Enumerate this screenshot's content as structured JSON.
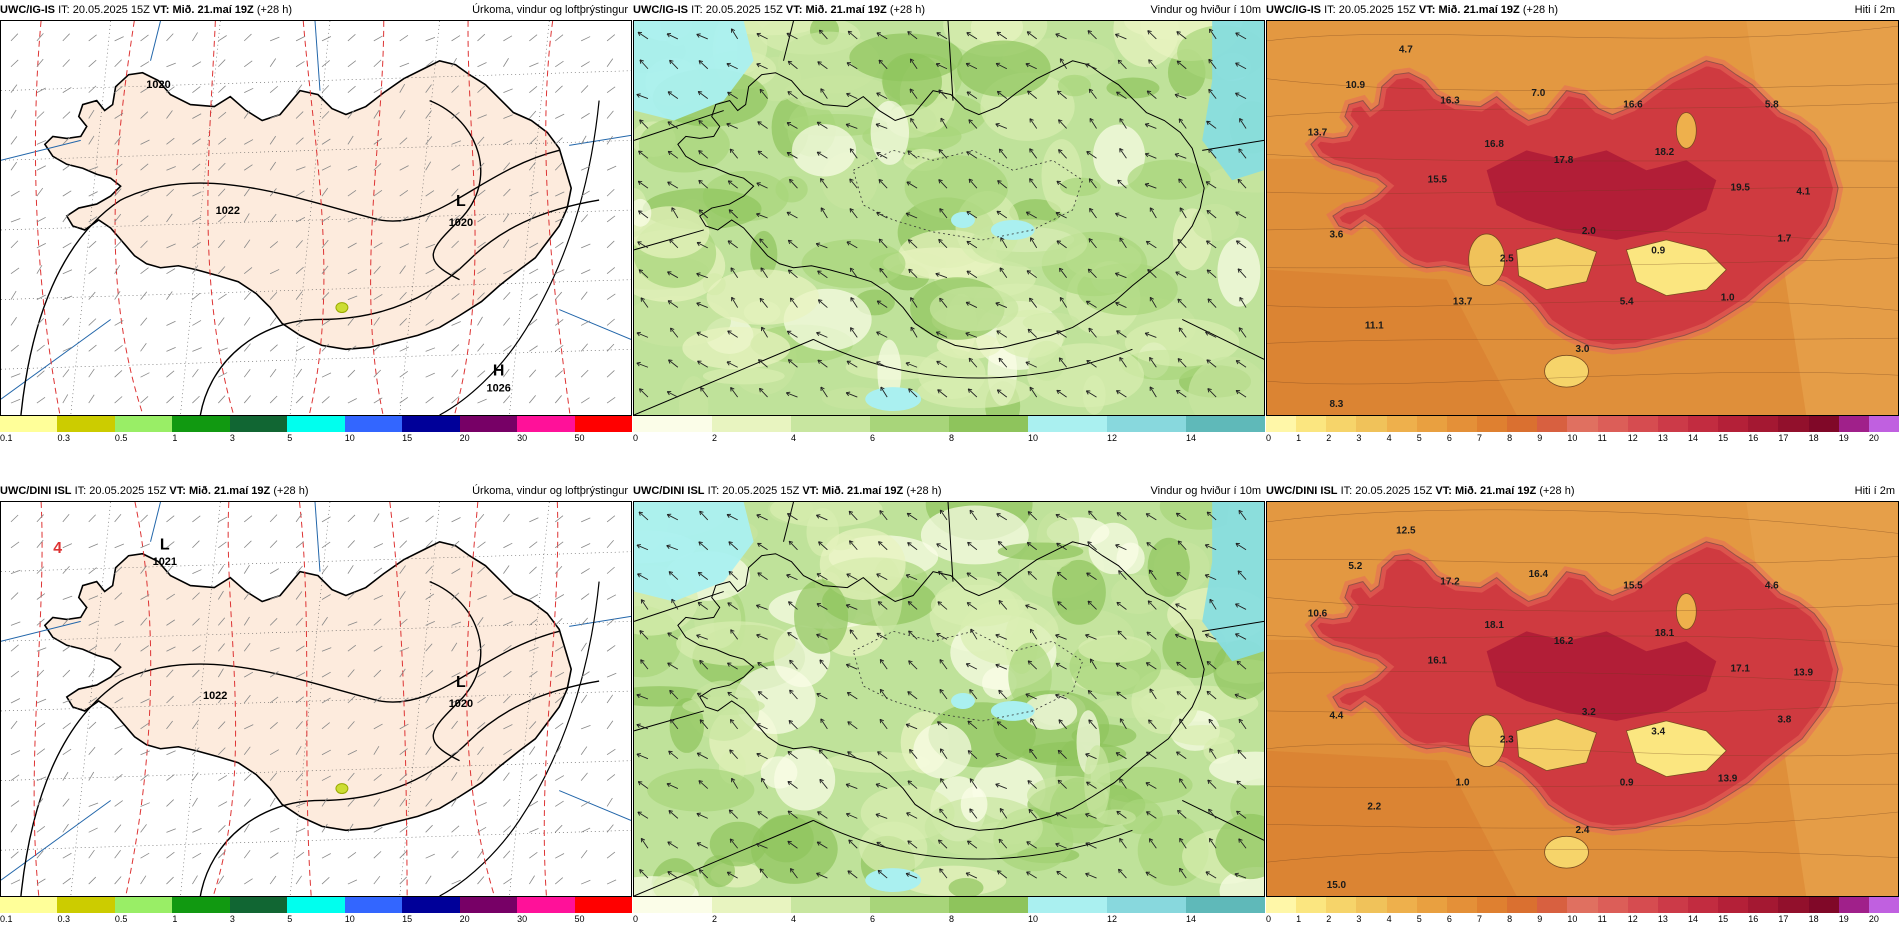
{
  "panels": [
    {
      "id": "r1c1",
      "model": "UWC/IG-IS",
      "it_label": "IT:",
      "it_value": "20.05.2025 15Z",
      "vt_label": "VT:",
      "vt_value": "Mið. 21.maí 19Z",
      "lead": "(+28 h)",
      "title": "Úrkoma, vindur og loftþrýstingur",
      "kind": "precip",
      "labels": [
        {
          "text": "1020"
        },
        {
          "text": "L"
        },
        {
          "text": "1020"
        },
        {
          "text": "H"
        },
        {
          "text": "1026"
        },
        {
          "text": "1022"
        }
      ],
      "legend_ticks": [
        "0.1",
        "0.3",
        "0.5",
        "1",
        "3",
        "5",
        "10",
        "15",
        "20",
        "30",
        "50"
      ]
    },
    {
      "id": "r1c2",
      "model": "UWC/IG-IS",
      "it_label": "IT:",
      "it_value": "20.05.2025 15Z",
      "vt_label": "VT:",
      "vt_value": "Mið. 21.maí 19Z",
      "lead": "(+28 h)",
      "title": "Vindur og hviður í 10m",
      "kind": "wind",
      "labels": [],
      "legend_ticks": [
        "0",
        "2",
        "4",
        "6",
        "8",
        "10",
        "12",
        "14"
      ]
    },
    {
      "id": "r1c3",
      "model": "UWC/IG-IS",
      "it_label": "IT:",
      "it_value": "20.05.2025 15Z",
      "vt_label": "VT:",
      "vt_value": "Mið. 21.maí 19Z",
      "lead": "(+28 h)",
      "title": "Hiti í 2m",
      "kind": "temp",
      "labels": [
        {
          "text": "4.7"
        },
        {
          "text": "10.9"
        },
        {
          "text": "16.3"
        },
        {
          "text": "7.0"
        },
        {
          "text": "16.6"
        },
        {
          "text": "5.8"
        },
        {
          "text": "13.7"
        },
        {
          "text": "16.8"
        },
        {
          "text": "17.8"
        },
        {
          "text": "18.2"
        },
        {
          "text": "15.5"
        },
        {
          "text": "19.5"
        },
        {
          "text": "4.1"
        },
        {
          "text": "3.6"
        },
        {
          "text": "2.0"
        },
        {
          "text": "0.9"
        },
        {
          "text": "1.7"
        },
        {
          "text": "2.5"
        },
        {
          "text": "13.7"
        },
        {
          "text": "5.4"
        },
        {
          "text": "1.0"
        },
        {
          "text": "11.1"
        },
        {
          "text": "3.0"
        },
        {
          "text": "8.3"
        }
      ],
      "legend_ticks": [
        "0",
        "1",
        "2",
        "3",
        "4",
        "5",
        "6",
        "7",
        "8",
        "9",
        "10",
        "11",
        "12",
        "13",
        "14",
        "15",
        "16",
        "17",
        "18",
        "19",
        "20"
      ]
    },
    {
      "id": "r2c1",
      "model": "UWC/DINI ISL",
      "it_label": "IT:",
      "it_value": "20.05.2025 15Z",
      "vt_label": "VT:",
      "vt_value": "Mið. 21.maí 19Z",
      "lead": "(+28 h)",
      "title": "Úrkoma, vindur og loftþrýstingur",
      "kind": "precip",
      "labels": [
        {
          "text": "L"
        },
        {
          "text": "1021"
        },
        {
          "text": "L"
        },
        {
          "text": "1020"
        },
        {
          "text": "1022"
        },
        {
          "text": "4"
        }
      ],
      "legend_ticks": [
        "0.1",
        "0.3",
        "0.5",
        "1",
        "3",
        "5",
        "10",
        "15",
        "20",
        "30",
        "50"
      ]
    },
    {
      "id": "r2c2",
      "model": "UWC/DINI ISL",
      "it_label": "IT:",
      "it_value": "20.05.2025 15Z",
      "vt_label": "VT:",
      "vt_value": "Mið. 21.maí 19Z",
      "lead": "(+28 h)",
      "title": "Vindur og hviður í 10m",
      "kind": "wind",
      "labels": [],
      "legend_ticks": [
        "0",
        "2",
        "4",
        "6",
        "8",
        "10",
        "12",
        "14"
      ]
    },
    {
      "id": "r2c3",
      "model": "UWC/DINI ISL",
      "it_label": "IT:",
      "it_value": "20.05.2025 15Z",
      "vt_label": "VT:",
      "vt_value": "Mið. 21.maí 19Z",
      "lead": "(+28 h)",
      "title": "Hiti í 2m",
      "kind": "temp",
      "labels": [
        {
          "text": "12.5"
        },
        {
          "text": "5.2"
        },
        {
          "text": "17.2"
        },
        {
          "text": "16.4"
        },
        {
          "text": "15.5"
        },
        {
          "text": "4.6"
        },
        {
          "text": "10.6"
        },
        {
          "text": "18.1"
        },
        {
          "text": "16.2"
        },
        {
          "text": "18.1"
        },
        {
          "text": "16.1"
        },
        {
          "text": "17.1"
        },
        {
          "text": "13.9"
        },
        {
          "text": "4.4"
        },
        {
          "text": "3.2"
        },
        {
          "text": "3.4"
        },
        {
          "text": "3.8"
        },
        {
          "text": "2.3"
        },
        {
          "text": "1.0"
        },
        {
          "text": "0.9"
        },
        {
          "text": "13.9"
        },
        {
          "text": "2.2"
        },
        {
          "text": "2.4"
        },
        {
          "text": "15.0"
        }
      ],
      "legend_ticks": [
        "0",
        "1",
        "2",
        "3",
        "4",
        "5",
        "6",
        "7",
        "8",
        "9",
        "10",
        "11",
        "12",
        "13",
        "14",
        "15",
        "16",
        "17",
        "18",
        "19",
        "20"
      ]
    }
  ],
  "legend_colors": {
    "precip": [
      "#ffff99",
      "#cccc00",
      "#99ee66",
      "#119911",
      "#116633",
      "#00ffee",
      "#3366ff",
      "#000099",
      "#770066",
      "#ff1199",
      "#ff0000"
    ],
    "wind": [
      "#fbfde8",
      "#e8f4c0",
      "#c8e6a0",
      "#a8d57a",
      "#8ec45c",
      "#aaf0f0",
      "#88d8dd",
      "#5fb9b9"
    ],
    "temp": [
      "#fff7a8",
      "#fbe680",
      "#f6d46a",
      "#f0c25a",
      "#eeb04c",
      "#e9a040",
      "#e49038",
      "#df8030",
      "#da7030",
      "#d86040",
      "#e07060",
      "#dc5e58",
      "#d64c50",
      "#cc3a48",
      "#c22c40",
      "#b42038",
      "#a41832",
      "#92102c",
      "#800828",
      "#a0208a",
      "#c060e0"
    ]
  }
}
